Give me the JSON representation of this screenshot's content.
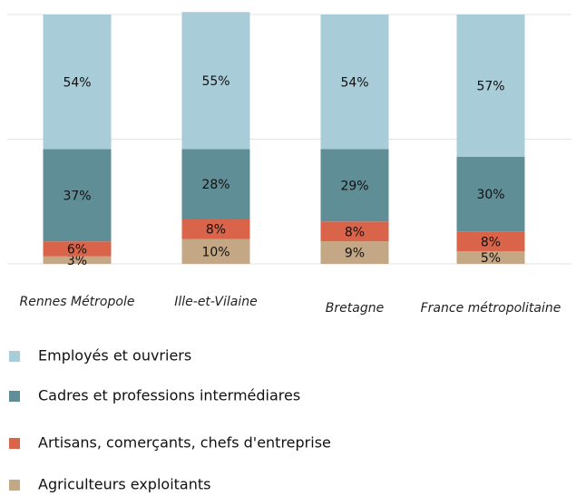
{
  "chart_data": {
    "type": "stacked_bar",
    "categories": [
      "Rennes Métropole",
      "Ille-et-Vilaine",
      "Bretagne",
      "France métropolitaine"
    ],
    "series": [
      {
        "name": "Employés et ouvriers",
        "color": "#a9cdd8",
        "values": [
          54,
          55,
          54,
          57
        ],
        "value_labels": [
          "54%",
          "55%",
          "54%",
          "57%"
        ]
      },
      {
        "name": "Cadres et professions intermédiares",
        "color": "#5f8e97",
        "values": [
          37,
          28,
          29,
          30
        ],
        "value_labels": [
          "37%",
          "28%",
          "29%",
          "30%"
        ]
      },
      {
        "name": "Artisans, comerçants, chefs d'entreprise",
        "color": "#d9644a",
        "values": [
          6,
          8,
          8,
          8
        ],
        "value_labels": [
          "6%",
          "8%",
          "8%",
          "8%"
        ]
      },
      {
        "name": "Agriculteurs exploitants",
        "color": "#c4a886",
        "values": [
          3,
          10,
          9,
          5
        ],
        "value_labels": [
          "3%",
          "10%",
          "9%",
          "5%"
        ]
      }
    ],
    "ylim": [
      0,
      100
    ],
    "yticks": [
      0,
      50,
      100
    ],
    "grid": true
  }
}
